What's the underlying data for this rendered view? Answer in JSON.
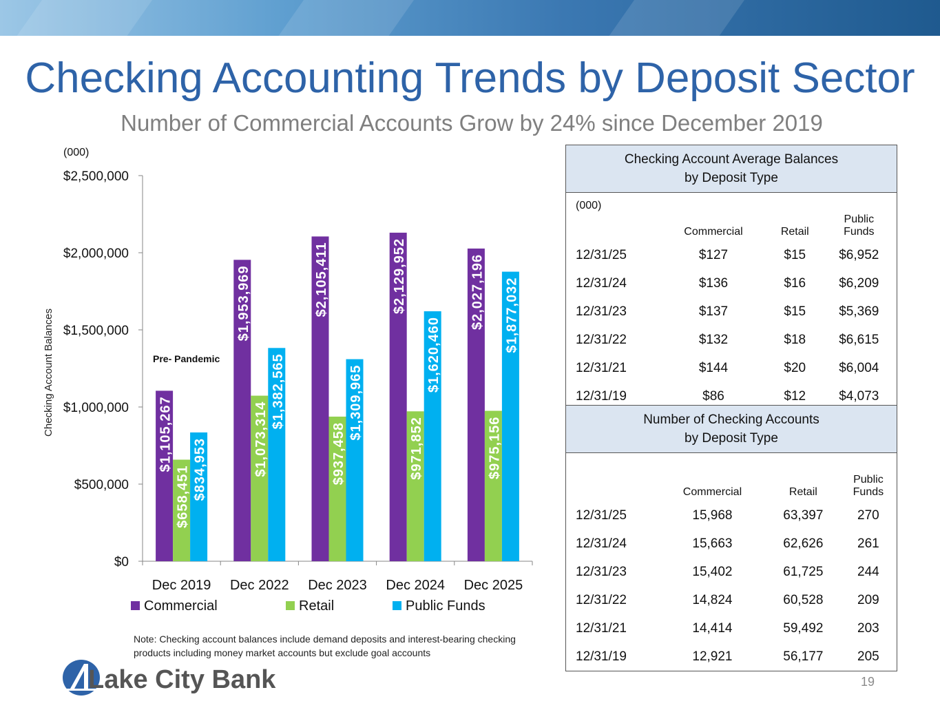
{
  "title": "Checking Accounting Trends by Deposit Sector",
  "subtitle": "Number of Commercial Accounts Grow by 24% since December 2019",
  "note": "Note: Checking account balances include demand deposits and interest-bearing checking products including money market accounts but exclude goal accounts",
  "logo_text": "Lake City Bank",
  "page_number": "19",
  "colors": {
    "commercial": "#7030a0",
    "retail": "#92d050",
    "public_funds": "#00b0f0",
    "title": "#2e63a8"
  },
  "chart_data": {
    "type": "bar",
    "title": "",
    "unit_label": "(000)",
    "ylabel": "Checking Account Balances",
    "xlabel": "",
    "ylim": [
      0,
      2500000
    ],
    "yticks": [
      0,
      500000,
      1000000,
      1500000,
      2000000,
      2500000
    ],
    "ytick_labels": [
      "$0",
      "$500,000",
      "$1,000,000",
      "$1,500,000",
      "$2,000,000",
      "$2,500,000"
    ],
    "categories": [
      "Dec 2019",
      "Dec 2022",
      "Dec 2023",
      "Dec 2024",
      "Dec 2025"
    ],
    "series": [
      {
        "name": "Commercial",
        "color": "#7030a0",
        "values": [
          1105267,
          1953969,
          2105411,
          2129952,
          2027196
        ],
        "labels": [
          "$1,105,267",
          "$1,953,969",
          "$2,105,411",
          "$2,129,952",
          "$2,027,196"
        ]
      },
      {
        "name": "Retail",
        "color": "#92d050",
        "values": [
          658451,
          1073314,
          937458,
          971852,
          975156
        ],
        "labels": [
          "$658,451",
          "$1,073,314",
          "$937,458",
          "$971,852",
          "$975,156"
        ]
      },
      {
        "name": "Public Funds",
        "color": "#00b0f0",
        "values": [
          834953,
          1382565,
          1309965,
          1620460,
          1877032
        ],
        "labels": [
          "$834,953",
          "$1,382,565",
          "$1,309,965",
          "$1,620,460",
          "$1,877,032"
        ]
      }
    ],
    "annotation": "Pre- Pandemic",
    "legend_position": "bottom"
  },
  "balances_table": {
    "title_line1": "Checking Account Average Balances",
    "title_line2": "by Deposit Type",
    "unit": "(000)",
    "col_commercial": "Commercial",
    "col_retail": "Retail",
    "col_public_line1": "Public",
    "col_public_line2": "Funds",
    "rows": [
      {
        "date": "12/31/25",
        "commercial": "$127",
        "retail": "$15",
        "public": "$6,952"
      },
      {
        "date": "12/31/24",
        "commercial": "$136",
        "retail": "$16",
        "public": "$6,209"
      },
      {
        "date": "12/31/23",
        "commercial": "$137",
        "retail": "$15",
        "public": "$5,369"
      },
      {
        "date": "12/31/22",
        "commercial": "$132",
        "retail": "$18",
        "public": "$6,615"
      },
      {
        "date": "12/31/21",
        "commercial": "$144",
        "retail": "$20",
        "public": "$6,004"
      },
      {
        "date": "12/31/19",
        "commercial": "$86",
        "retail": "$12",
        "public": "$4,073"
      }
    ]
  },
  "counts_table": {
    "title_line1": "Number of Checking Accounts",
    "title_line2": "by Deposit Type",
    "col_commercial": "Commercial",
    "col_retail": "Retail",
    "col_public_line1": "Public",
    "col_public_line2": "Funds",
    "rows": [
      {
        "date": "12/31/25",
        "commercial": "15,968",
        "retail": "63,397",
        "public": "270"
      },
      {
        "date": "12/31/24",
        "commercial": "15,663",
        "retail": "62,626",
        "public": "261"
      },
      {
        "date": "12/31/23",
        "commercial": "15,402",
        "retail": "61,725",
        "public": "244"
      },
      {
        "date": "12/31/22",
        "commercial": "14,824",
        "retail": "60,528",
        "public": "209"
      },
      {
        "date": "12/31/21",
        "commercial": "14,414",
        "retail": "59,492",
        "public": "203"
      },
      {
        "date": "12/31/19",
        "commercial": "12,921",
        "retail": "56,177",
        "public": "205"
      }
    ]
  }
}
